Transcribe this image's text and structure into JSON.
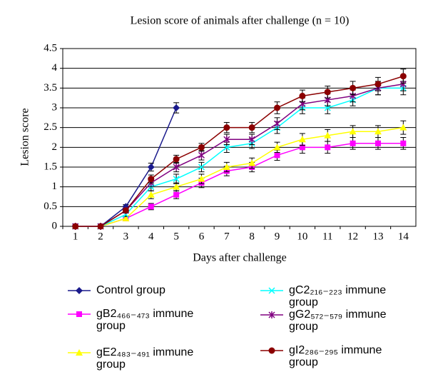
{
  "chart_data": {
    "type": "line",
    "title": "Lesion score of animals after challenge (n = 10)",
    "x_label": "Days after challenge",
    "y_label": "Lesion score",
    "categories": [
      "1",
      "2",
      "3",
      "4",
      "5",
      "6",
      "7",
      "8",
      "9",
      "10",
      "11",
      "12",
      "13",
      "14"
    ],
    "ylim": [
      0,
      4.5
    ],
    "yticks": [
      0,
      0.5,
      1,
      1.5,
      2,
      2.5,
      3,
      3.5,
      4,
      4.5
    ],
    "grid": true,
    "series": [
      {
        "name": "Control group",
        "color": "#1a1a8c",
        "marker": "diamond",
        "values": [
          0,
          0,
          0.5,
          1.5,
          3,
          null,
          null,
          null,
          null,
          null,
          null,
          null,
          null,
          null
        ],
        "errors": [
          0,
          0,
          0.05,
          0.1,
          0.13,
          null,
          null,
          null,
          null,
          null,
          null,
          null,
          null,
          null
        ]
      },
      {
        "name": "gB2₄₆₆₋₄₇₃ immune group",
        "color": "#ff00ff",
        "marker": "square",
        "values": [
          0,
          0,
          0.2,
          0.5,
          0.8,
          1.1,
          1.4,
          1.5,
          1.8,
          2.0,
          2.0,
          2.1,
          2.1,
          2.1
        ],
        "errors": [
          0,
          0,
          0.05,
          0.08,
          0.1,
          0.12,
          0.12,
          0.12,
          0.13,
          0.15,
          0.15,
          0.15,
          0.15,
          0.15
        ]
      },
      {
        "name": "gE2₄₈₃₋₄₉₁ immune group",
        "color": "#ffff00",
        "marker": "triangle",
        "values": [
          0,
          0,
          0.2,
          0.8,
          1.0,
          1.2,
          1.5,
          1.6,
          2.0,
          2.2,
          2.3,
          2.4,
          2.4,
          2.5
        ],
        "errors": [
          0,
          0,
          0.05,
          0.1,
          0.1,
          0.12,
          0.12,
          0.13,
          0.13,
          0.15,
          0.15,
          0.15,
          0.15,
          0.17
        ]
      },
      {
        "name": "gC2₂₁₆₋₂₂₃ immune group",
        "color": "#00ffff",
        "marker": "x",
        "values": [
          0,
          0,
          0.3,
          1.0,
          1.2,
          1.5,
          2.0,
          2.1,
          2.5,
          3.0,
          3.0,
          3.2,
          3.5,
          3.5
        ],
        "errors": [
          0,
          0,
          0.05,
          0.1,
          0.12,
          0.12,
          0.13,
          0.13,
          0.15,
          0.15,
          0.15,
          0.15,
          0.17,
          0.17
        ]
      },
      {
        "name": "gG2₅₇₂₋₅₇₉ immune group",
        "color": "#800080",
        "marker": "star",
        "values": [
          0,
          0,
          0.4,
          1.1,
          1.5,
          1.8,
          2.2,
          2.2,
          2.6,
          3.1,
          3.2,
          3.3,
          3.5,
          3.6
        ],
        "errors": [
          0,
          0,
          0.05,
          0.1,
          0.12,
          0.12,
          0.13,
          0.13,
          0.15,
          0.15,
          0.15,
          0.15,
          0.17,
          0.17
        ]
      },
      {
        "name": "gI2₂₈₆₋₂₉₅ immune group",
        "color": "#8b0000",
        "marker": "circle",
        "values": [
          0,
          0,
          0.4,
          1.2,
          1.7,
          2.0,
          2.5,
          2.5,
          3.0,
          3.3,
          3.4,
          3.5,
          3.6,
          3.8
        ],
        "errors": [
          0,
          0,
          0.05,
          0.1,
          0.1,
          0.1,
          0.13,
          0.13,
          0.15,
          0.15,
          0.15,
          0.17,
          0.17,
          0.18
        ]
      }
    ]
  }
}
